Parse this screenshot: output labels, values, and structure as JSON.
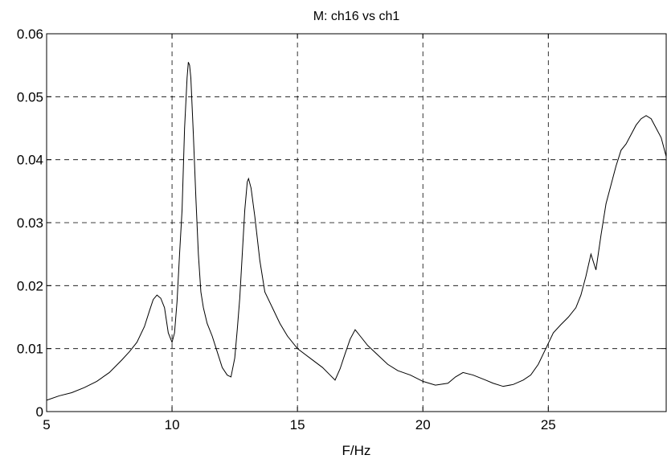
{
  "chart_data": {
    "type": "line",
    "title": "M: ch16 vs ch1",
    "xlabel": "F/Hz",
    "ylabel": "",
    "xlim": [
      5,
      29.7
    ],
    "ylim": [
      0,
      0.06
    ],
    "xticks": [
      5,
      10,
      15,
      20,
      25
    ],
    "xtick_labels": [
      "5",
      "10",
      "15",
      "20",
      "25"
    ],
    "yticks": [
      0,
      0.01,
      0.02,
      0.03,
      0.04,
      0.05,
      0.06
    ],
    "ytick_labels": [
      "0",
      "0.01",
      "0.02",
      "0.03",
      "0.04",
      "0.05",
      "0.06"
    ],
    "grid": true,
    "legend": "none",
    "line_color": "#000000",
    "series": [
      {
        "x": [
          5.0,
          5.5,
          6.0,
          6.5,
          7.0,
          7.5,
          8.0,
          8.3,
          8.6,
          8.9,
          9.1,
          9.25,
          9.4,
          9.55,
          9.7,
          9.85,
          10.0,
          10.1,
          10.2,
          10.3,
          10.4,
          10.5,
          10.6,
          10.65,
          10.7,
          10.75,
          10.85,
          10.95,
          11.05,
          11.15,
          11.25,
          11.4,
          11.6,
          11.8,
          12.0,
          12.2,
          12.35,
          12.5,
          12.6,
          12.7,
          12.8,
          12.9,
          13.0,
          13.05,
          13.15,
          13.3,
          13.5,
          13.7,
          14.0,
          14.3,
          14.6,
          15.0,
          15.5,
          16.0,
          16.3,
          16.5,
          16.7,
          16.9,
          17.1,
          17.3,
          17.5,
          17.8,
          18.2,
          18.6,
          19.0,
          19.5,
          20.0,
          20.5,
          21.0,
          21.3,
          21.6,
          22.0,
          22.5,
          22.8,
          23.2,
          23.6,
          24.0,
          24.3,
          24.6,
          24.9,
          25.2,
          25.5,
          25.8,
          26.1,
          26.3,
          26.5,
          26.7,
          26.9,
          27.1,
          27.3,
          27.5,
          27.7,
          27.9,
          28.1,
          28.3,
          28.5,
          28.7,
          28.9,
          29.1,
          29.3,
          29.5,
          29.7
        ],
        "y": [
          0.0018,
          0.0025,
          0.003,
          0.0038,
          0.0048,
          0.0062,
          0.0082,
          0.0095,
          0.011,
          0.0135,
          0.016,
          0.0178,
          0.0185,
          0.018,
          0.0165,
          0.0125,
          0.011,
          0.0125,
          0.0175,
          0.025,
          0.032,
          0.045,
          0.053,
          0.0555,
          0.055,
          0.053,
          0.044,
          0.034,
          0.025,
          0.019,
          0.0165,
          0.014,
          0.012,
          0.0095,
          0.007,
          0.0058,
          0.0055,
          0.0085,
          0.013,
          0.018,
          0.025,
          0.032,
          0.0365,
          0.037,
          0.0355,
          0.031,
          0.024,
          0.019,
          0.0165,
          0.014,
          0.012,
          0.01,
          0.0085,
          0.007,
          0.0058,
          0.005,
          0.0068,
          0.0092,
          0.0115,
          0.013,
          0.012,
          0.0105,
          0.009,
          0.0075,
          0.0065,
          0.0058,
          0.0048,
          0.0042,
          0.0045,
          0.0055,
          0.0062,
          0.0058,
          0.005,
          0.0045,
          0.004,
          0.0043,
          0.005,
          0.0058,
          0.0075,
          0.01,
          0.0125,
          0.0138,
          0.015,
          0.0165,
          0.0185,
          0.0215,
          0.025,
          0.0225,
          0.028,
          0.033,
          0.036,
          0.039,
          0.0415,
          0.0425,
          0.044,
          0.0455,
          0.0465,
          0.047,
          0.0465,
          0.045,
          0.0435,
          0.0405
        ]
      }
    ]
  }
}
